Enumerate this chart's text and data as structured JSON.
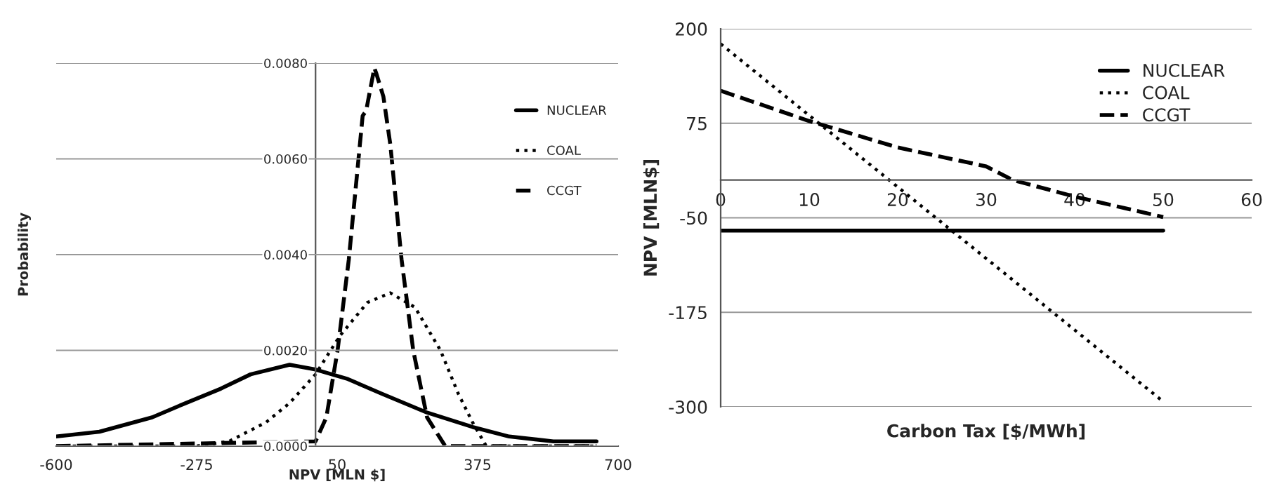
{
  "chart_data": [
    {
      "type": "line",
      "xlabel": "NPV [MLN $]",
      "ylabel": "Probability",
      "xlim": [
        -600,
        700
      ],
      "xticks": [
        -600,
        -275,
        50,
        375,
        700
      ],
      "ylim": [
        0,
        0.008
      ],
      "yticks": [
        {
          "value": 0,
          "label": "0.0000"
        },
        {
          "value": 0.002,
          "label": "0.0020"
        },
        {
          "value": 0.004,
          "label": "0.0040"
        },
        {
          "value": 0.006,
          "label": "0.0060"
        },
        {
          "value": 0.008,
          "label": "0.0080"
        }
      ],
      "grid": "y",
      "legend": "top right",
      "marker": "none",
      "series": [
        {
          "name": "NUCLEAR",
          "color": "#000000",
          "line_style": "solid",
          "x": [
            -600,
            -500,
            -378,
            -300,
            -219,
            -150,
            -60,
            0,
            75,
            152,
            258,
            363,
            448,
            550,
            650
          ],
          "values": [
            0.0002,
            0.0003,
            0.0006,
            0.0009,
            0.0012,
            0.0015,
            0.0017,
            0.0016,
            0.0014,
            0.0011,
            0.0007,
            0.0004,
            0.0002,
            0.0001,
            0.0001
          ]
        },
        {
          "name": "COAL",
          "color": "#000000",
          "line_style": "dotted",
          "x": [
            -600,
            -350,
            -275,
            -200,
            -114,
            -60,
            0,
            56,
            120,
            173,
            230,
            289,
            330,
            363,
            395,
            650
          ],
          "values": [
            0,
            0,
            0,
            0.0001,
            0.0005,
            0.0009,
            0.0015,
            0.0023,
            0.003,
            0.0032,
            0.0029,
            0.002,
            0.0011,
            0.0005,
            0,
            0
          ]
        },
        {
          "name": "CCGT",
          "color": "#000000",
          "line_style": "dashed",
          "x": [
            -600,
            0,
            25,
            51,
            77,
            109,
            117,
            136,
            140,
            157,
            173,
            199,
            226,
            258,
            300,
            650
          ],
          "values": [
            0,
            0.0001,
            0.0006,
            0.002,
            0.0039,
            0.0069,
            0.007,
            0.0079,
            0.0078,
            0.0073,
            0.0063,
            0.0039,
            0.002,
            0.0006,
            0,
            0
          ]
        }
      ]
    },
    {
      "type": "line",
      "xlabel": "Carbon Tax [$/MWh]",
      "ylabel": "NPV [MLN$]",
      "xlim": [
        0,
        60
      ],
      "xticks": [
        0,
        10,
        20,
        30,
        40,
        50,
        60
      ],
      "ylim": [
        -300,
        200
      ],
      "yticks": [
        -300,
        -175,
        -50,
        75,
        200
      ],
      "grid": "y",
      "legend": "top right",
      "marker": "none",
      "series": [
        {
          "name": "NUCLEAR",
          "color": "#000000",
          "line_style": "solid",
          "x": [
            0,
            50
          ],
          "values": [
            -67,
            -67
          ]
        },
        {
          "name": "COAL",
          "color": "#000000",
          "line_style": "dotted",
          "x": [
            0,
            50
          ],
          "values": [
            180,
            -293
          ]
        },
        {
          "name": "CCGT",
          "color": "#000000",
          "line_style": "dashed",
          "x": [
            0,
            10,
            20,
            30,
            33,
            40,
            50
          ],
          "values": [
            118,
            78,
            43,
            18,
            0,
            -22,
            -49
          ]
        }
      ]
    }
  ]
}
